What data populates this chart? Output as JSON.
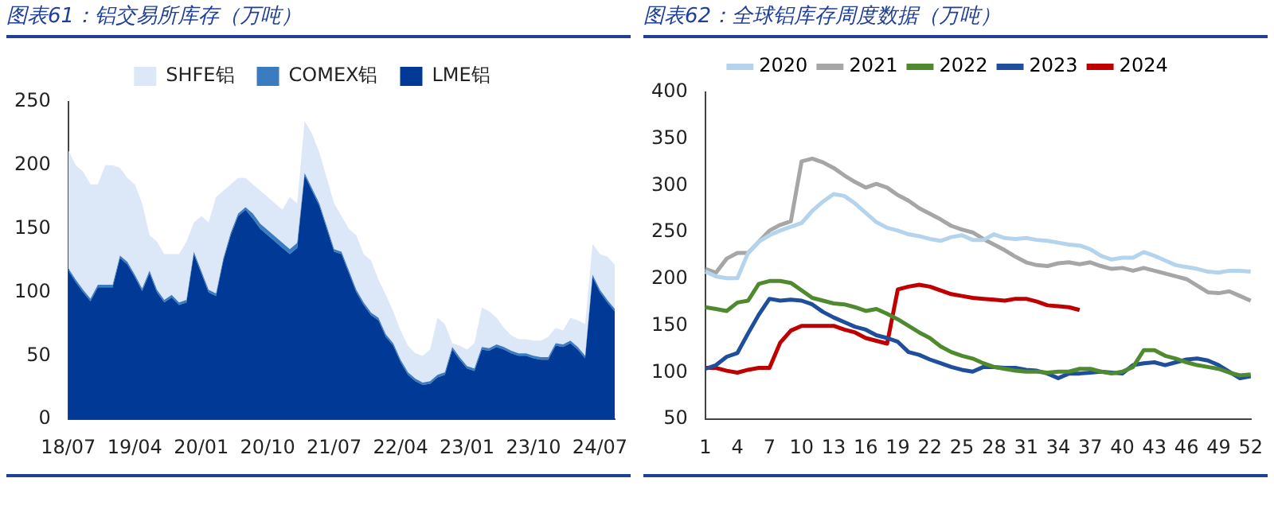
{
  "chart_data": [
    {
      "type": "area",
      "title": "图表61：铝交易所库存（万吨）",
      "stacked": true,
      "legend": "top",
      "grid": false,
      "marker": "none",
      "categories": [
        "18/07",
        null,
        null,
        null,
        null,
        null,
        null,
        null,
        null,
        "19/04",
        null,
        null,
        null,
        null,
        null,
        null,
        null,
        null,
        "20/01",
        null,
        null,
        null,
        null,
        null,
        null,
        null,
        null,
        "20/10",
        null,
        null,
        null,
        null,
        null,
        null,
        null,
        null,
        "21/07",
        null,
        null,
        null,
        null,
        null,
        null,
        null,
        null,
        "22/04",
        null,
        null,
        null,
        null,
        null,
        null,
        null,
        null,
        "23/01",
        null,
        null,
        null,
        null,
        null,
        null,
        null,
        null,
        "23/10",
        null,
        null,
        null,
        null,
        null,
        null,
        null,
        null,
        "24/07",
        null,
        null
      ],
      "ylim": [
        0,
        250
      ],
      "yticks": [
        0,
        50,
        100,
        150,
        200,
        250
      ],
      "series": [
        {
          "name": "LME铝",
          "color": "#003a96",
          "values": [
            117,
            108,
            100,
            93,
            104,
            104,
            104,
            127,
            122,
            112,
            101,
            115,
            100,
            92,
            96,
            90,
            92,
            130,
            115,
            100,
            97,
            125,
            145,
            160,
            165,
            158,
            150,
            145,
            140,
            135,
            130,
            135,
            192,
            180,
            168,
            150,
            132,
            130,
            115,
            100,
            90,
            82,
            78,
            65,
            58,
            45,
            35,
            30,
            27,
            28,
            33,
            35,
            55,
            47,
            40,
            38,
            55,
            54,
            57,
            55,
            52,
            50,
            50,
            48,
            47,
            47,
            58,
            57,
            60,
            55,
            48,
            112,
            100,
            92,
            85
          ]
        },
        {
          "name": "COMEX铝",
          "color": "#3a7cc0",
          "values": [
            2,
            2,
            2,
            2,
            2,
            2,
            2,
            2,
            2,
            2,
            2,
            2,
            2,
            2,
            2,
            2,
            2,
            2,
            2,
            2,
            2,
            2,
            2,
            2,
            2,
            4,
            4,
            4,
            4,
            4,
            4,
            4,
            2,
            2,
            2,
            2,
            2,
            2,
            2,
            2,
            2,
            2,
            2,
            2,
            2,
            2,
            2,
            2,
            2,
            2,
            2,
            2,
            2,
            2,
            2,
            2,
            2,
            2,
            2,
            2,
            2,
            2,
            2,
            2,
            2,
            2,
            2,
            2,
            2,
            2,
            2,
            2,
            2,
            2,
            2
          ]
        },
        {
          "name": "SHFE铝",
          "color": "#dce8f7",
          "values": [
            93,
            90,
            93,
            90,
            79,
            94,
            94,
            69,
            66,
            71,
            67,
            28,
            38,
            36,
            32,
            38,
            46,
            23,
            43,
            53,
            76,
            53,
            38,
            28,
            23,
            23,
            26,
            26,
            26,
            26,
            41,
            31,
            41,
            43,
            40,
            38,
            36,
            28,
            33,
            43,
            38,
            41,
            30,
            31,
            25,
            23,
            21,
            20,
            21,
            25,
            45,
            38,
            3,
            9,
            13,
            20,
            31,
            29,
            21,
            15,
            12,
            11,
            11,
            12,
            13,
            16,
            12,
            11,
            18,
            21,
            25,
            24,
            28,
            34,
            35
          ]
        }
      ]
    },
    {
      "type": "line",
      "title": "图表62：全球铝库存周度数据（万吨）",
      "legend": "top",
      "grid": false,
      "marker": "none",
      "line_style": "solid",
      "categories": [
        "1",
        null,
        null,
        "4",
        null,
        null,
        "7",
        null,
        null,
        "10",
        null,
        null,
        "13",
        null,
        null,
        "16",
        null,
        null,
        "19",
        null,
        null,
        "22",
        null,
        null,
        "25",
        null,
        null,
        "28",
        null,
        null,
        "31",
        null,
        null,
        "34",
        null,
        null,
        "37",
        null,
        null,
        "40",
        null,
        null,
        "43",
        null,
        null,
        "46",
        null,
        null,
        "49",
        null,
        null,
        "52"
      ],
      "ylim": [
        50,
        400
      ],
      "yticks": [
        50,
        100,
        150,
        200,
        250,
        300,
        350,
        400
      ],
      "series": [
        {
          "name": "2020",
          "color": "#b4d4ee",
          "values": [
            208,
            203,
            201,
            201,
            228,
            240,
            247,
            252,
            256,
            260,
            273,
            283,
            291,
            289,
            281,
            271,
            261,
            255,
            252,
            248,
            246,
            243,
            241,
            245,
            247,
            242,
            242,
            248,
            244,
            243,
            244,
            242,
            241,
            239,
            237,
            236,
            232,
            225,
            221,
            223,
            223,
            229,
            225,
            220,
            215,
            213,
            211,
            208,
            207,
            209,
            209,
            208
          ]
        },
        {
          "name": "2021",
          "color": "#a6a6a6",
          "values": [
            211,
            207,
            222,
            228,
            228,
            240,
            252,
            258,
            262,
            326,
            329,
            325,
            319,
            311,
            304,
            298,
            302,
            298,
            290,
            284,
            276,
            270,
            264,
            257,
            253,
            250,
            243,
            237,
            231,
            224,
            218,
            215,
            214,
            217,
            218,
            216,
            218,
            214,
            211,
            212,
            209,
            212,
            209,
            206,
            203,
            200,
            193,
            186,
            185,
            187,
            182,
            177
          ]
        },
        {
          "name": "2022",
          "color": "#4f8a2f",
          "values": [
            170,
            168,
            166,
            175,
            177,
            195,
            198,
            198,
            196,
            188,
            180,
            177,
            174,
            173,
            170,
            166,
            168,
            163,
            157,
            150,
            143,
            137,
            128,
            122,
            118,
            115,
            110,
            106,
            104,
            102,
            101,
            101,
            100,
            101,
            101,
            104,
            104,
            101,
            99,
            101,
            106,
            124,
            124,
            118,
            115,
            111,
            108,
            106,
            104,
            100,
            97,
            98
          ]
        },
        {
          "name": "2023",
          "color": "#1f4e9c",
          "values": [
            104,
            108,
            117,
            121,
            142,
            162,
            179,
            177,
            178,
            177,
            173,
            165,
            159,
            154,
            149,
            146,
            140,
            137,
            133,
            122,
            119,
            114,
            110,
            106,
            103,
            101,
            106,
            106,
            105,
            105,
            103,
            102,
            99,
            94,
            99,
            99,
            100,
            101,
            100,
            99,
            108,
            110,
            111,
            108,
            111,
            114,
            115,
            113,
            108,
            101,
            94,
            96
          ]
        },
        {
          "name": "2024",
          "color": "#c00000",
          "values": [
            105,
            105,
            102,
            100,
            103,
            105,
            105,
            132,
            145,
            150,
            150,
            150,
            150,
            146,
            143,
            137,
            134,
            131,
            189,
            192,
            194,
            192,
            188,
            184,
            182,
            180,
            179,
            178,
            177,
            179,
            179,
            176,
            172,
            171,
            170,
            167,
            null,
            null,
            null,
            null,
            null,
            null,
            null,
            null,
            null,
            null,
            null,
            null,
            null,
            null,
            null,
            null
          ]
        }
      ]
    }
  ]
}
